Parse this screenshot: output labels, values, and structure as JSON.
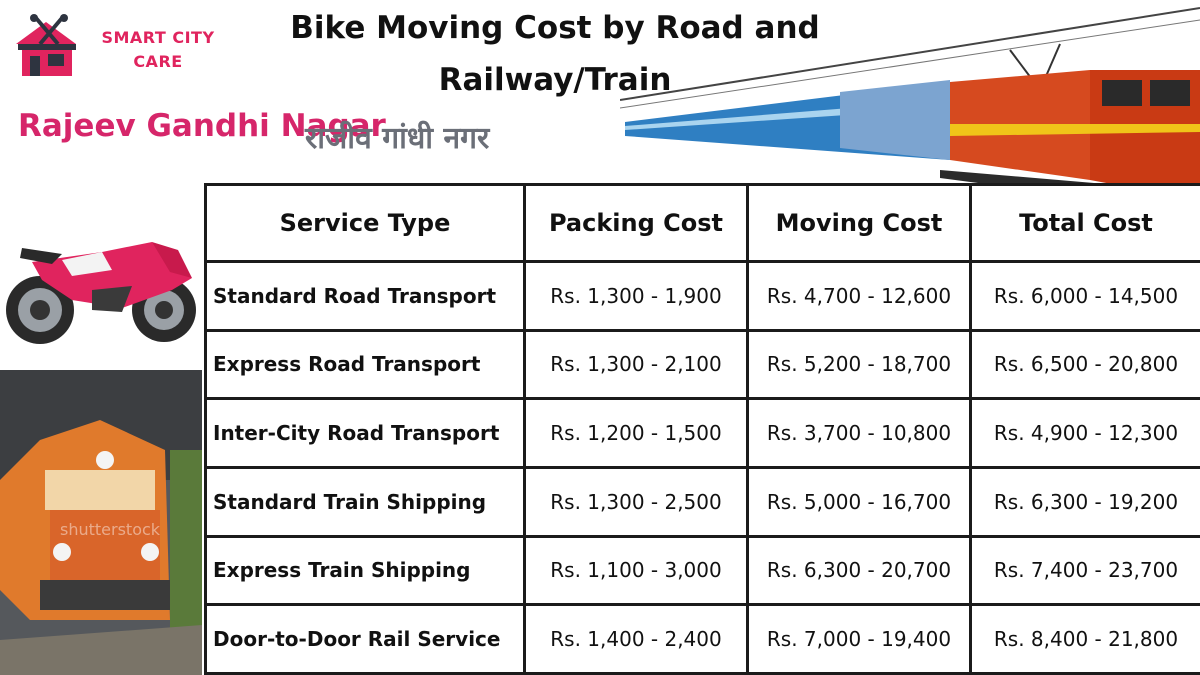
{
  "brand": {
    "line1": "SMART CITY",
    "line2": "CARE"
  },
  "title_line1": "Bike Moving Cost by Road and",
  "title_line2": "Railway/Train",
  "location_en": "Rajeev Gandhi Nagar",
  "location_hi": "राजीव गांधी नगर",
  "colors": {
    "brand_pink": "#e0245e",
    "heading_pink": "#d6266a",
    "hindi_gray": "#6b6f78",
    "border": "#1b1b1b"
  },
  "table": {
    "headers": [
      "Service Type",
      "Packing Cost",
      "Moving Cost",
      "Total Cost"
    ],
    "rows": [
      [
        "Standard Road Transport",
        "Rs. 1,300 - 1,900",
        "Rs. 4,700 - 12,600",
        "Rs. 6,000 - 14,500"
      ],
      [
        "Express Road Transport",
        "Rs. 1,300 - 2,100",
        "Rs. 5,200 - 18,700",
        "Rs. 6,500 - 20,800"
      ],
      [
        "Inter-City Road Transport",
        "Rs. 1,200 - 1,500",
        "Rs. 3,700 - 10,800",
        "Rs. 4,900 - 12,300"
      ],
      [
        "Standard Train Shipping",
        "Rs. 1,300 - 2,500",
        "Rs. 5,000 - 16,700",
        "Rs. 6,300 - 19,200"
      ],
      [
        "Express Train Shipping",
        "Rs. 1,100 - 3,000",
        "Rs. 6,300 - 20,700",
        "Rs. 7,400 - 23,700"
      ],
      [
        "Door-to-Door Rail Service",
        "Rs. 1,400 - 2,400",
        "Rs. 7,000 - 19,400",
        "Rs. 8,400 - 21,800"
      ]
    ]
  },
  "watermark": "shutterstock",
  "images": {
    "logo": "house-tools-logo",
    "train_top": "electric-train-image",
    "bike": "sport-bike-image",
    "loco": "diesel-locomotive-image"
  }
}
